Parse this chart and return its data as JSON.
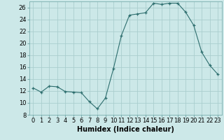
{
  "x": [
    0,
    1,
    2,
    3,
    4,
    5,
    6,
    7,
    8,
    9,
    10,
    11,
    12,
    13,
    14,
    15,
    16,
    17,
    18,
    19,
    20,
    21,
    22,
    23
  ],
  "y": [
    12.5,
    11.8,
    12.8,
    12.7,
    11.9,
    11.8,
    11.7,
    10.2,
    9.0,
    10.8,
    15.7,
    21.3,
    24.7,
    24.9,
    25.1,
    26.7,
    26.5,
    26.7,
    26.7,
    25.2,
    23.0,
    18.5,
    16.3,
    14.8
  ],
  "line_color": "#2d6e6e",
  "marker": "+",
  "bg_color": "#cce8e8",
  "grid_color": "#aacece",
  "xlabel": "Humidex (Indice chaleur)",
  "ylim": [
    8,
    27
  ],
  "xlim": [
    -0.5,
    23.5
  ],
  "yticks": [
    8,
    10,
    12,
    14,
    16,
    18,
    20,
    22,
    24,
    26
  ],
  "xticks": [
    0,
    1,
    2,
    3,
    4,
    5,
    6,
    7,
    8,
    9,
    10,
    11,
    12,
    13,
    14,
    15,
    16,
    17,
    18,
    19,
    20,
    21,
    22,
    23
  ],
  "label_fontsize": 7,
  "tick_fontsize": 6
}
